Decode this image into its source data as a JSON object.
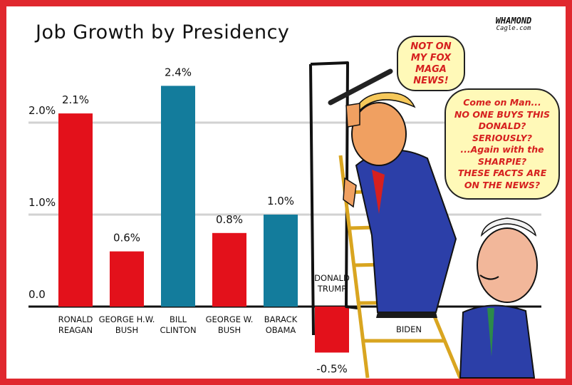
{
  "title": "Job Growth by Presidency",
  "signature": {
    "name": "WHAMOND",
    "site": "Cagle.com"
  },
  "colors": {
    "frame": "#e0282e",
    "red": "#e3111b",
    "blue": "#137c9c",
    "grid": "#d2d2d2"
  },
  "chart_data": {
    "type": "bar",
    "title": "Job Growth by Presidency",
    "ylim": [
      -0.5,
      2.4
    ],
    "yticks": [
      {
        "value": 0.0,
        "label": "0.0"
      },
      {
        "value": 1.0,
        "label": "1.0%"
      },
      {
        "value": 2.0,
        "label": "2.0%"
      }
    ],
    "bars": [
      {
        "name": "ronald-reagan",
        "line1": "RONALD",
        "line2": "REAGAN",
        "value": 2.1,
        "label": "2.1%",
        "party": "red"
      },
      {
        "name": "george-hw-bush",
        "line1": "GEORGE H.W.",
        "line2": "BUSH",
        "value": 0.6,
        "label": "0.6%",
        "party": "red"
      },
      {
        "name": "bill-clinton",
        "line1": "BILL",
        "line2": "CLINTON",
        "value": 2.4,
        "label": "2.4%",
        "party": "blue"
      },
      {
        "name": "george-w-bush",
        "line1": "GEORGE W.",
        "line2": "BUSH",
        "value": 0.8,
        "label": "0.8%",
        "party": "red"
      },
      {
        "name": "barack-obama",
        "line1": "BARACK",
        "line2": "OBAMA",
        "value": 1.0,
        "label": "1.0%",
        "party": "blue"
      },
      {
        "name": "donald-trump",
        "line1": "DONALD",
        "line2": "TRUMP",
        "value": -0.5,
        "label": "-0.5%",
        "party": "red"
      },
      {
        "name": "biden",
        "line1": "BIDEN",
        "line2": "",
        "value": null,
        "label": "",
        "party": "blue"
      }
    ]
  },
  "bubbles": {
    "trump": [
      "NOT ON",
      "MY FOX",
      "MAGA",
      "NEWS!"
    ],
    "biden": [
      "Come on Man...",
      "NO ONE BUYS THIS",
      "DONALD?",
      "SERIOUSLY?",
      "...Again with the",
      "SHARPIE?",
      "THESE FACTS ARE",
      "ON THE NEWS?"
    ]
  }
}
